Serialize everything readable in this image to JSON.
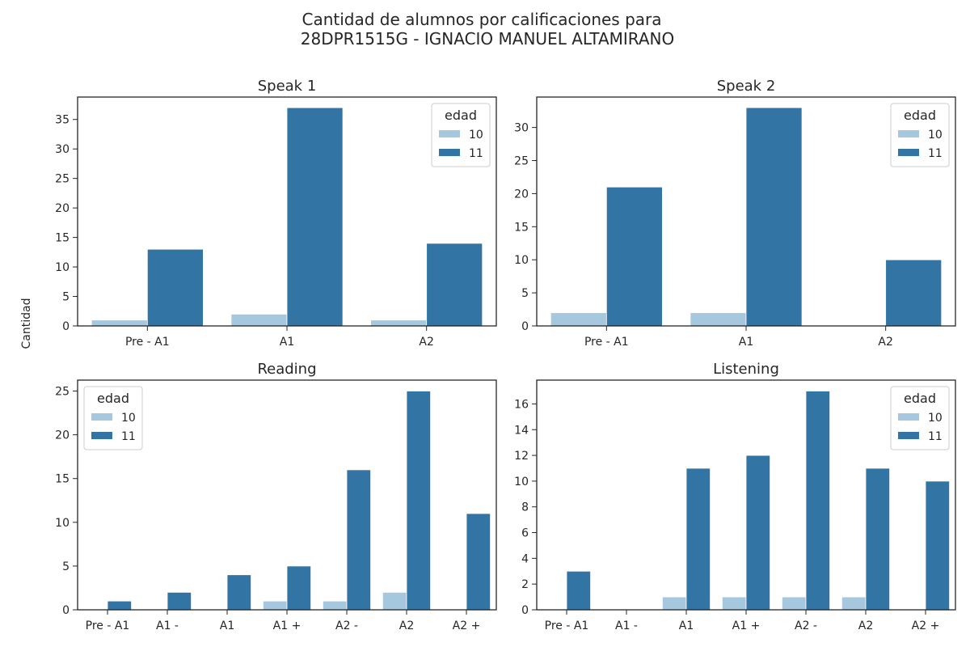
{
  "figure": {
    "title_line1": "Cantidad de alumnos por calificaciones para",
    "title_line2": "28DPR1515G - IGNACIO MANUEL ALTAMIRANO",
    "ylabel": "Cantidad"
  },
  "colors": {
    "edad_10": "#a6c8df",
    "edad_11": "#3274a4",
    "axes": "#262626"
  },
  "chart_data": [
    {
      "type": "bar",
      "title": "Speak 1",
      "categories": [
        "Pre - A1",
        "A1",
        "A2"
      ],
      "series": [
        {
          "name": "10",
          "values": [
            1,
            2,
            1
          ]
        },
        {
          "name": "11",
          "values": [
            13,
            37,
            14
          ]
        }
      ],
      "ylim": [
        0,
        38.8
      ],
      "yticks": [
        0,
        5,
        10,
        15,
        20,
        25,
        30,
        35
      ],
      "legend": {
        "title": "edad",
        "placement": "top-right"
      }
    },
    {
      "type": "bar",
      "title": "Speak 2",
      "categories": [
        "Pre - A1",
        "A1",
        "A2"
      ],
      "series": [
        {
          "name": "10",
          "values": [
            2,
            2,
            0
          ]
        },
        {
          "name": "11",
          "values": [
            21,
            33,
            10
          ]
        }
      ],
      "ylim": [
        0,
        34.6
      ],
      "yticks": [
        0,
        5,
        10,
        15,
        20,
        25,
        30
      ],
      "legend": {
        "title": "edad",
        "placement": "top-right"
      }
    },
    {
      "type": "bar",
      "title": "Reading",
      "categories": [
        "Pre - A1",
        "A1 -",
        "A1",
        "A1 +",
        "A2 -",
        "A2",
        "A2 +"
      ],
      "series": [
        {
          "name": "10",
          "values": [
            0,
            0,
            0,
            1,
            1,
            2,
            0
          ]
        },
        {
          "name": "11",
          "values": [
            1,
            2,
            4,
            5,
            16,
            25,
            11
          ]
        }
      ],
      "ylim": [
        0,
        26.25
      ],
      "yticks": [
        0,
        5,
        10,
        15,
        20,
        25
      ],
      "legend": {
        "title": "edad",
        "placement": "top-left"
      }
    },
    {
      "type": "bar",
      "title": "Listening",
      "categories": [
        "Pre - A1",
        "A1 -",
        "A1",
        "A1 +",
        "A2 -",
        "A2",
        "A2 +"
      ],
      "series": [
        {
          "name": "10",
          "values": [
            0,
            0,
            1,
            1,
            1,
            1,
            0
          ]
        },
        {
          "name": "11",
          "values": [
            3,
            0,
            11,
            12,
            17,
            11,
            10
          ]
        }
      ],
      "ylim": [
        0,
        17.85
      ],
      "yticks": [
        0,
        2,
        4,
        6,
        8,
        10,
        12,
        14,
        16
      ],
      "legend": {
        "title": "edad",
        "placement": "top-right"
      }
    }
  ]
}
